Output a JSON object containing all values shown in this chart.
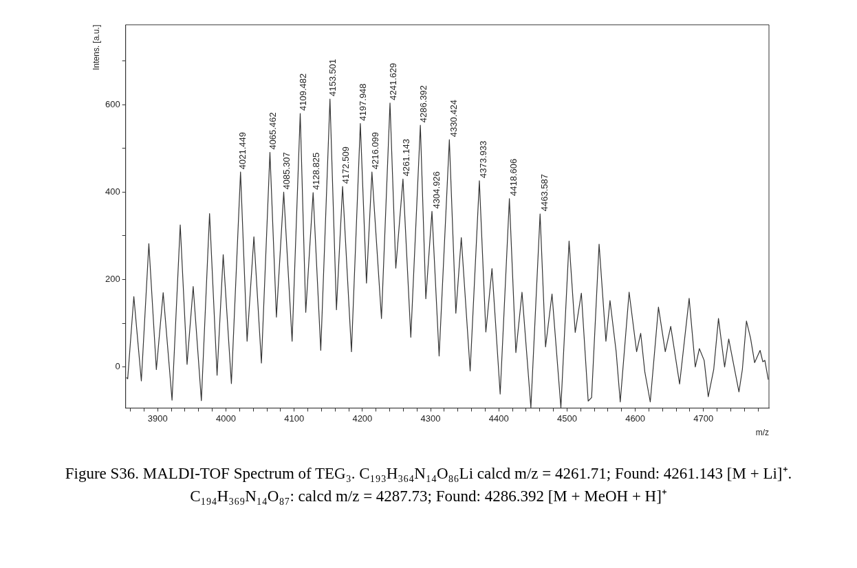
{
  "chart_data": {
    "type": "line",
    "xlabel": "m/z",
    "ylabel": "Intens. [a.u.]",
    "marker": "none",
    "line_style": "solid",
    "xlim": [
      3853,
      4796
    ],
    "ylim": [
      -94,
      783
    ],
    "xticks": [
      {
        "value": 3860,
        "label": null
      },
      {
        "value": 3880,
        "label": null
      },
      3900,
      {
        "value": 3920,
        "label": null
      },
      {
        "value": 3940,
        "label": null
      },
      {
        "value": 3960,
        "label": null
      },
      {
        "value": 3980,
        "label": null
      },
      4000,
      {
        "value": 4020,
        "label": null
      },
      {
        "value": 4040,
        "label": null
      },
      {
        "value": 4060,
        "label": null
      },
      {
        "value": 4080,
        "label": null
      },
      4100,
      {
        "value": 4120,
        "label": null
      },
      {
        "value": 4140,
        "label": null
      },
      {
        "value": 4160,
        "label": null
      },
      {
        "value": 4180,
        "label": null
      },
      4200,
      {
        "value": 4220,
        "label": null
      },
      {
        "value": 4240,
        "label": null
      },
      {
        "value": 4260,
        "label": null
      },
      {
        "value": 4280,
        "label": null
      },
      4300,
      {
        "value": 4320,
        "label": null
      },
      {
        "value": 4340,
        "label": null
      },
      {
        "value": 4360,
        "label": null
      },
      {
        "value": 4380,
        "label": null
      },
      4400,
      {
        "value": 4420,
        "label": null
      },
      {
        "value": 4440,
        "label": null
      },
      {
        "value": 4460,
        "label": null
      },
      {
        "value": 4480,
        "label": null
      },
      4500,
      {
        "value": 4520,
        "label": null
      },
      {
        "value": 4540,
        "label": null
      },
      {
        "value": 4560,
        "label": null
      },
      {
        "value": 4580,
        "label": null
      },
      4600,
      {
        "value": 4620,
        "label": null
      },
      {
        "value": 4640,
        "label": null
      },
      {
        "value": 4660,
        "label": null
      },
      {
        "value": 4680,
        "label": null
      },
      4700,
      {
        "value": 4720,
        "label": null
      },
      {
        "value": 4740,
        "label": null
      },
      {
        "value": 4760,
        "label": null
      },
      {
        "value": 4780,
        "label": null
      }
    ],
    "yticks": [
      0,
      {
        "value": 100,
        "label": null
      },
      200,
      {
        "value": 300,
        "label": null
      },
      400,
      {
        "value": 500,
        "label": null
      },
      600,
      {
        "value": 700,
        "label": null
      }
    ],
    "x": [
      3854,
      3856,
      3865,
      3876,
      3887,
      3898,
      3908,
      3921,
      3933,
      3943,
      3952,
      3964,
      3976,
      3987,
      3996,
      4008,
      4021.4,
      4031,
      4041,
      4052,
      4064.5,
      4074,
      4084.7,
      4097,
      4108.9,
      4117,
      4127.8,
      4139,
      4152.5,
      4162,
      4171,
      4184,
      4197,
      4206,
      4214,
      4228,
      4240.5,
      4249,
      4259.5,
      4271,
      4285,
      4293,
      4302,
      4312.5,
      4327.5,
      4337,
      4345,
      4358,
      4371.5,
      4381,
      4390,
      4402,
      4415.5,
      4425,
      4434,
      4447,
      4460.5,
      4468.5,
      4478,
      4491,
      4503,
      4512,
      4521,
      4531,
      4536,
      4547,
      4557,
      4563,
      4572,
      4578,
      4591,
      4602,
      4608,
      4614,
      4622,
      4634,
      4644,
      4652,
      4665,
      4679,
      4688,
      4694,
      4701,
      4707,
      4715,
      4722,
      4731,
      4737,
      4752,
      4757,
      4763,
      4769,
      4775,
      4783,
      4787,
      4790,
      4795
    ],
    "series": [
      {
        "color": "#333333",
        "values": [
          -24,
          -27,
          161,
          -32,
          282,
          -6,
          170,
          -76,
          325,
          6,
          184,
          -77,
          351,
          -19,
          257,
          -38,
          446,
          59,
          298,
          9,
          491,
          114,
          400,
          59,
          580,
          125,
          399,
          38,
          613,
          131,
          413,
          35,
          557,
          192,
          446,
          111,
          604,
          226,
          430,
          68,
          553,
          156,
          356,
          25,
          520,
          123,
          296,
          -9,
          426,
          80,
          225,
          -62,
          385,
          33,
          171,
          -93,
          350,
          46,
          167,
          -93,
          288,
          79,
          169,
          -78,
          -70,
          281,
          59,
          152,
          35,
          -80,
          171,
          35,
          77,
          -11,
          -80,
          137,
          35,
          93,
          -39,
          157,
          0,
          42,
          15,
          -68,
          -6,
          111,
          0,
          64,
          -57,
          -6,
          105,
          66,
          10,
          38,
          12,
          15,
          -29
        ]
      }
    ],
    "annotations": [
      {
        "text": "4021.449",
        "x": 4021.449,
        "y": 446
      },
      {
        "text": "4065.462",
        "x": 4065.462,
        "y": 491
      },
      {
        "text": "4085.307",
        "x": 4085.307,
        "y": 400
      },
      {
        "text": "4109.482",
        "x": 4109.482,
        "y": 580
      },
      {
        "text": "4128.825",
        "x": 4128.825,
        "y": 399
      },
      {
        "text": "4153.501",
        "x": 4153.501,
        "y": 613
      },
      {
        "text": "4172.509",
        "x": 4172.509,
        "y": 413
      },
      {
        "text": "4197.948",
        "x": 4197.948,
        "y": 557
      },
      {
        "text": "4216.099",
        "x": 4216.099,
        "y": 446
      },
      {
        "text": "4241.629",
        "x": 4241.629,
        "y": 604
      },
      {
        "text": "4261.143",
        "x": 4261.143,
        "y": 430
      },
      {
        "text": "4286.392",
        "x": 4286.392,
        "y": 553
      },
      {
        "text": "4304.926",
        "x": 4304.926,
        "y": 356
      },
      {
        "text": "4330.424",
        "x": 4330.424,
        "y": 520
      },
      {
        "text": "4373.933",
        "x": 4373.933,
        "y": 426
      },
      {
        "text": "4418.606",
        "x": 4418.606,
        "y": 385
      },
      {
        "text": "4463.587",
        "x": 4463.587,
        "y": 350
      },
      "Figure S36. MALDI-TOF Spectrum of TEG₃. C₁₉₃H₃₆₄N₁₄O₈₆Li calcd m/z = 4261.71; Found: 4261.143 [M + Li]⁺. C₁₉₄H₃₆₉N₁₄O₈₇: calcd m/z = 4287.73; Found: 4286.392 [M + MeOH + H]⁺"
    ]
  }
}
